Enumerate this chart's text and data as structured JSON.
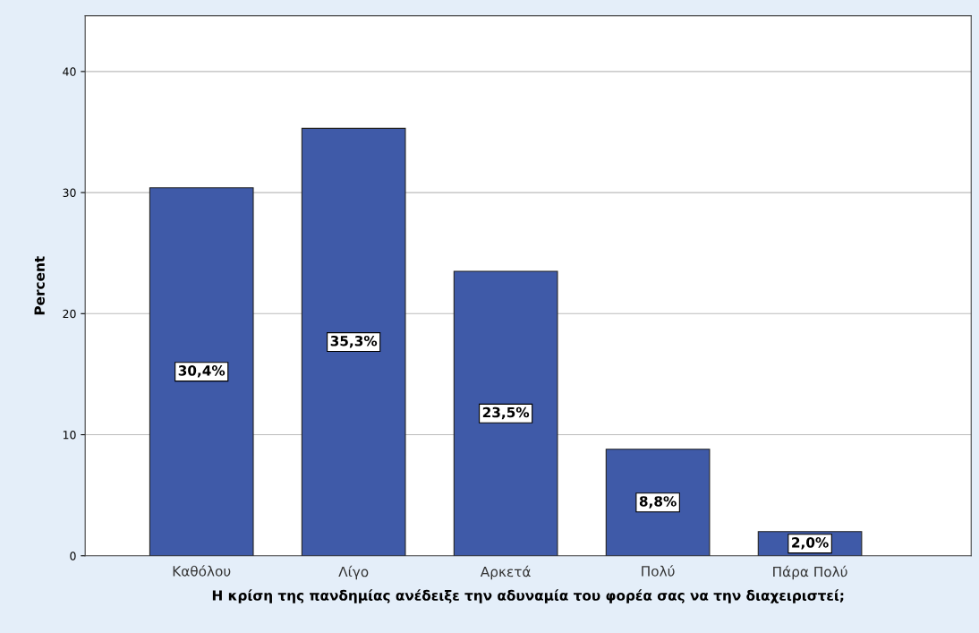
{
  "chart_data": {
    "type": "bar",
    "xlabel": "Η κρίση της πανδημίας ανέδειξε την αδυναμία του φορέα σας να την διαχειριστεί;",
    "ylabel": "Percent",
    "categories": [
      "Καθόλου",
      "Λίγο",
      "Αρκετά",
      "Πολύ",
      "Πάρα Πολύ"
    ],
    "values": [
      30.4,
      35.3,
      23.5,
      8.8,
      2.0
    ],
    "value_labels": [
      "30,4%",
      "35,3%",
      "23,5%",
      "8,8%",
      "2,0%"
    ],
    "color": "#3f5aa8",
    "ylim": [
      0,
      44.6
    ],
    "yticks": [
      0,
      10,
      20,
      30,
      40
    ],
    "grid": "y"
  }
}
